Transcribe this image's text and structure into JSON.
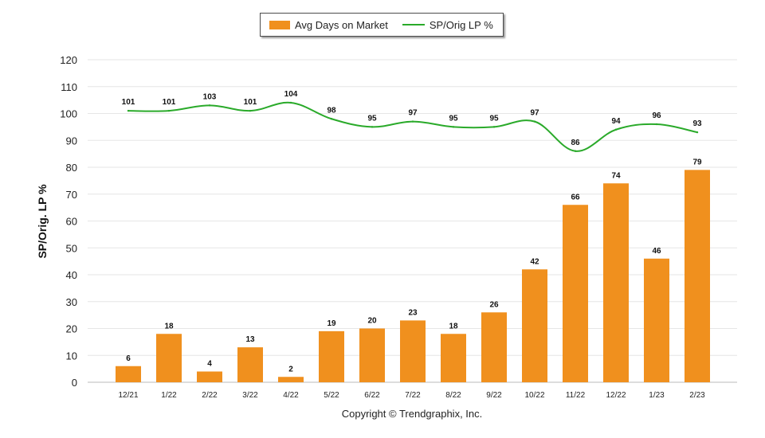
{
  "chart_data": {
    "type": "bar",
    "categories": [
      "12/21",
      "1/22",
      "2/22",
      "3/22",
      "4/22",
      "5/22",
      "6/22",
      "7/22",
      "8/22",
      "9/22",
      "10/22",
      "11/22",
      "12/22",
      "1/23",
      "2/23"
    ],
    "series": [
      {
        "name": "Avg Days on Market",
        "type": "bar",
        "color": "#f0901e",
        "values": [
          6,
          18,
          4,
          13,
          2,
          19,
          20,
          23,
          18,
          26,
          42,
          66,
          74,
          46,
          79
        ]
      },
      {
        "name": "SP/Orig LP %",
        "type": "line",
        "color": "#2aaa2a",
        "values": [
          101,
          101,
          103,
          101,
          104,
          98,
          95,
          97,
          95,
          95,
          97,
          86,
          94,
          96,
          93
        ]
      }
    ],
    "ylabel": "SP/Orig. LP %",
    "ylim": [
      0,
      120
    ],
    "yticks": [
      0,
      10,
      20,
      30,
      40,
      50,
      60,
      70,
      80,
      90,
      100,
      110,
      120
    ],
    "grid": true,
    "legend": "top-center"
  },
  "footer": {
    "copyright": "Copyright © Trendgraphix, Inc."
  }
}
